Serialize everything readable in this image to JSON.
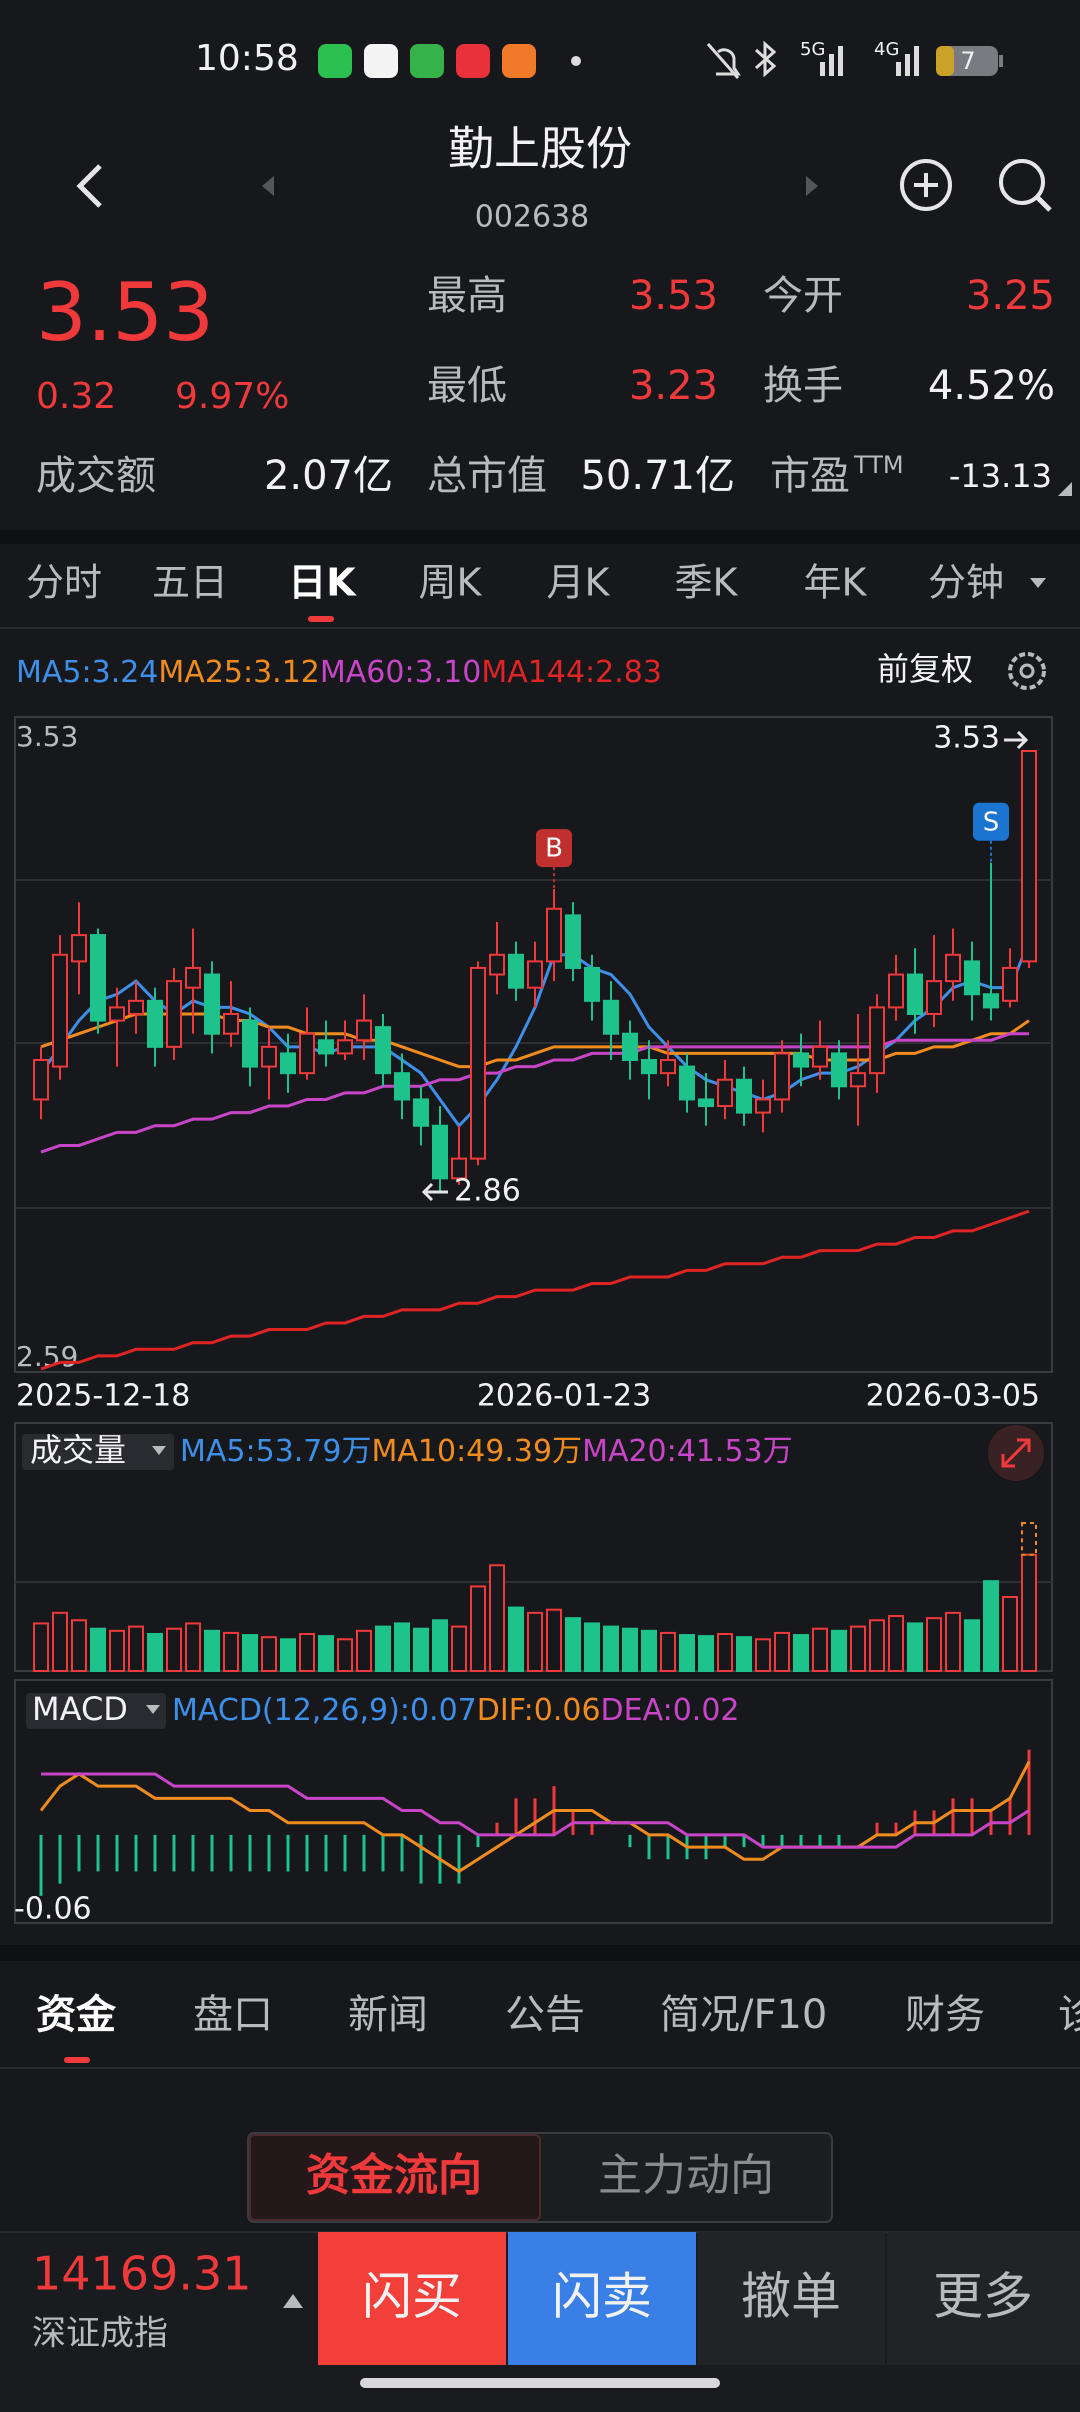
{
  "status": {
    "time": "10:58",
    "net1": "5G",
    "net2": "4G",
    "battery": "7"
  },
  "header": {
    "title": "勤上股份",
    "code": "002638"
  },
  "quote": {
    "price": "3.53",
    "change": "0.32",
    "change_pct": "9.97%",
    "stats": [
      {
        "label": "最高",
        "value": "3.53"
      },
      {
        "label": "今开",
        "value": "3.25"
      },
      {
        "label": "最低",
        "value": "3.23"
      },
      {
        "label": "换手",
        "value": "4.52%"
      },
      {
        "label": "成交额",
        "value": "2.07亿"
      },
      {
        "label": "总市值",
        "value": "50.71亿"
      },
      {
        "label": "市盈",
        "sup": "TTM",
        "value": "-13.13"
      }
    ]
  },
  "period_tabs": [
    "分时",
    "五日",
    "日K",
    "周K",
    "月K",
    "季K",
    "年K",
    "分钟"
  ],
  "adjust": "前复权",
  "chart_data": [
    {
      "type": "candlestick",
      "legend": [
        "MA5:3.24",
        "MA25:3.12",
        "MA60:3.10",
        "MA144:2.83"
      ],
      "marks": [
        "B",
        "S"
      ],
      "categories": [
        "2025-12-18",
        null,
        null,
        null,
        null,
        null,
        null,
        null,
        null,
        null,
        null,
        null,
        null,
        null,
        null,
        null,
        null,
        null,
        null,
        null,
        null,
        null,
        null,
        null,
        null,
        null,
        null,
        "2026-01-23",
        null,
        null,
        null,
        null,
        null,
        null,
        null,
        null,
        null,
        null,
        null,
        null,
        null,
        null,
        null,
        null,
        null,
        null,
        null,
        null,
        null,
        null,
        null,
        null,
        "2026-03-05"
      ],
      "open": [
        3.0,
        3.05,
        3.21,
        3.25,
        3.12,
        3.13,
        3.15,
        3.08,
        3.17,
        3.19,
        3.1,
        3.12,
        3.05,
        3.07,
        3.04,
        3.09,
        3.07,
        3.09,
        3.11,
        3.04,
        3.0,
        2.96,
        2.88,
        2.91,
        3.19,
        3.22,
        3.17,
        3.21,
        3.28,
        3.2,
        3.15,
        3.1,
        3.06,
        3.04,
        3.05,
        3.0,
        2.99,
        3.03,
        2.98,
        3.0,
        3.07,
        3.05,
        3.07,
        3.02,
        3.04,
        3.14,
        3.19,
        3.13,
        3.18,
        3.21,
        3.16,
        3.15,
        3.21
      ],
      "close": [
        3.06,
        3.22,
        3.25,
        3.12,
        3.14,
        3.15,
        3.08,
        3.18,
        3.2,
        3.1,
        3.13,
        3.05,
        3.08,
        3.04,
        3.1,
        3.07,
        3.09,
        3.12,
        3.04,
        3.0,
        2.96,
        2.88,
        2.91,
        3.2,
        3.22,
        3.17,
        3.21,
        3.29,
        3.2,
        3.15,
        3.1,
        3.06,
        3.04,
        3.06,
        3.0,
        2.99,
        3.03,
        2.98,
        3.0,
        3.07,
        3.05,
        3.08,
        3.02,
        3.04,
        3.14,
        3.19,
        3.13,
        3.18,
        3.22,
        3.16,
        3.14,
        3.2,
        3.53
      ],
      "high": [
        3.08,
        3.25,
        3.3,
        3.26,
        3.17,
        3.18,
        3.17,
        3.2,
        3.26,
        3.21,
        3.18,
        3.14,
        3.11,
        3.1,
        3.14,
        3.12,
        3.12,
        3.16,
        3.13,
        3.07,
        3.02,
        2.99,
        2.96,
        3.21,
        3.27,
        3.24,
        3.24,
        3.32,
        3.3,
        3.22,
        3.18,
        3.12,
        3.09,
        3.09,
        3.07,
        3.04,
        3.06,
        3.05,
        3.03,
        3.09,
        3.1,
        3.12,
        3.09,
        3.13,
        3.16,
        3.22,
        3.23,
        3.25,
        3.26,
        3.24,
        3.36,
        3.23,
        3.53
      ],
      "low": [
        2.97,
        3.03,
        3.16,
        3.1,
        3.05,
        3.1,
        3.05,
        3.06,
        3.1,
        3.07,
        3.08,
        3.02,
        3.0,
        3.01,
        3.03,
        3.05,
        3.06,
        3.06,
        3.02,
        2.97,
        2.93,
        2.86,
        2.87,
        2.9,
        3.16,
        3.15,
        3.14,
        3.18,
        3.18,
        3.12,
        3.06,
        3.03,
        3.0,
        3.02,
        2.98,
        2.96,
        2.97,
        2.96,
        2.95,
        2.98,
        3.02,
        3.03,
        3.0,
        2.96,
        3.01,
        3.12,
        3.1,
        3.11,
        3.15,
        3.12,
        3.12,
        3.14,
        3.2
      ],
      "series": [
        {
          "color": "#3d8fe8",
          "values": [
            3.04,
            3.08,
            3.12,
            3.15,
            3.16,
            3.18,
            3.15,
            3.13,
            3.15,
            3.14,
            3.14,
            3.13,
            3.11,
            3.08,
            3.08,
            3.07,
            3.08,
            3.08,
            3.08,
            3.06,
            3.04,
            3.0,
            2.96,
            2.99,
            3.03,
            3.08,
            3.14,
            3.22,
            3.22,
            3.2,
            3.19,
            3.16,
            3.11,
            3.08,
            3.05,
            3.03,
            3.02,
            3.01,
            3.0,
            3.01,
            3.03,
            3.04,
            3.04,
            3.05,
            3.07,
            3.09,
            3.12,
            3.14,
            3.17,
            3.18,
            3.17,
            3.17,
            3.24
          ]
        },
        {
          "color": "#f08c1e",
          "values": [
            3.08,
            3.09,
            3.1,
            3.11,
            3.12,
            3.13,
            3.13,
            3.13,
            3.13,
            3.13,
            3.12,
            3.12,
            3.11,
            3.11,
            3.1,
            3.1,
            3.1,
            3.09,
            3.09,
            3.08,
            3.07,
            3.06,
            3.05,
            3.05,
            3.06,
            3.06,
            3.07,
            3.08,
            3.08,
            3.08,
            3.08,
            3.08,
            3.08,
            3.07,
            3.07,
            3.07,
            3.07,
            3.07,
            3.07,
            3.07,
            3.07,
            3.06,
            3.06,
            3.06,
            3.06,
            3.07,
            3.07,
            3.08,
            3.08,
            3.09,
            3.1,
            3.1,
            3.12
          ]
        },
        {
          "color": "#c845c8",
          "values": [
            2.92,
            2.93,
            2.93,
            2.94,
            2.95,
            2.95,
            2.96,
            2.96,
            2.97,
            2.97,
            2.98,
            2.98,
            2.99,
            2.99,
            3.0,
            3.0,
            3.01,
            3.01,
            3.02,
            3.02,
            3.02,
            3.03,
            3.03,
            3.04,
            3.04,
            3.05,
            3.05,
            3.06,
            3.06,
            3.07,
            3.07,
            3.07,
            3.08,
            3.08,
            3.08,
            3.08,
            3.08,
            3.08,
            3.08,
            3.08,
            3.08,
            3.08,
            3.08,
            3.08,
            3.08,
            3.09,
            3.09,
            3.09,
            3.09,
            3.09,
            3.09,
            3.1,
            3.1
          ]
        },
        {
          "color": "#e02424",
          "values": [
            2.59,
            2.6,
            2.6,
            2.61,
            2.61,
            2.62,
            2.62,
            2.62,
            2.63,
            2.63,
            2.64,
            2.64,
            2.65,
            2.65,
            2.65,
            2.66,
            2.66,
            2.67,
            2.67,
            2.68,
            2.68,
            2.68,
            2.69,
            2.69,
            2.7,
            2.7,
            2.71,
            2.71,
            2.71,
            2.72,
            2.72,
            2.73,
            2.73,
            2.73,
            2.74,
            2.74,
            2.75,
            2.75,
            2.75,
            2.76,
            2.76,
            2.77,
            2.77,
            2.77,
            2.78,
            2.78,
            2.79,
            2.79,
            2.8,
            2.8,
            2.81,
            2.82,
            2.83
          ]
        }
      ],
      "up_color": "#f0393b",
      "down_color": "#1ec28b",
      "ylim": [
        2.59,
        3.53
      ]
    },
    {
      "type": "bar",
      "title": "成交量",
      "legend": [
        {
          "text": "MA5:53.79万",
          "color": "#3d8fe8"
        },
        {
          "text": "MA10:49.39万",
          "color": "#f08c1e"
        },
        {
          "text": "MA20:41.53万",
          "color": "#c845c8"
        }
      ],
      "values": [
        45,
        55,
        48,
        40,
        38,
        42,
        35,
        40,
        45,
        38,
        36,
        34,
        32,
        30,
        35,
        33,
        30,
        38,
        42,
        45,
        40,
        48,
        42,
        80,
        100,
        60,
        55,
        58,
        50,
        45,
        42,
        40,
        38,
        36,
        34,
        33,
        35,
        32,
        30,
        36,
        34,
        40,
        38,
        42,
        48,
        52,
        45,
        50,
        55,
        48,
        85,
        70,
        110
      ],
      "ylim": [
        0,
        140
      ]
    },
    {
      "type": "bar",
      "title": "MACD",
      "legend": [
        {
          "text": "MACD(12,26,9):0.07",
          "color": "#3d8fe8"
        },
        {
          "text": "DIF:0.06",
          "color": "#f08c1e"
        },
        {
          "text": "DEA:0.02",
          "color": "#c845c8"
        }
      ],
      "values": [
        -0.05,
        -0.04,
        -0.03,
        -0.03,
        -0.03,
        -0.03,
        -0.03,
        -0.03,
        -0.03,
        -0.03,
        -0.03,
        -0.03,
        -0.03,
        -0.03,
        -0.03,
        -0.03,
        -0.03,
        -0.03,
        -0.03,
        -0.03,
        -0.04,
        -0.04,
        -0.04,
        -0.01,
        0.01,
        0.03,
        0.03,
        0.04,
        0.02,
        0.01,
        0.0,
        -0.01,
        -0.02,
        -0.02,
        -0.02,
        -0.02,
        -0.01,
        -0.01,
        -0.01,
        -0.01,
        -0.01,
        -0.01,
        -0.01,
        0.0,
        0.01,
        0.01,
        0.02,
        0.02,
        0.03,
        0.03,
        0.02,
        0.03,
        0.07
      ],
      "series": [
        {
          "color": "#f08c1e",
          "values": [
            0.02,
            0.04,
            0.05,
            0.04,
            0.04,
            0.04,
            0.03,
            0.03,
            0.03,
            0.03,
            0.03,
            0.02,
            0.02,
            0.01,
            0.01,
            0.01,
            0.01,
            0.01,
            0.0,
            0.0,
            -0.01,
            -0.02,
            -0.03,
            -0.02,
            -0.01,
            0.0,
            0.01,
            0.02,
            0.02,
            0.02,
            0.01,
            0.01,
            0.0,
            0.0,
            -0.01,
            -0.01,
            -0.01,
            -0.02,
            -0.02,
            -0.01,
            -0.01,
            -0.01,
            -0.01,
            -0.01,
            0.0,
            0.0,
            0.01,
            0.01,
            0.02,
            0.02,
            0.02,
            0.03,
            0.06
          ]
        },
        {
          "color": "#c845c8",
          "values": [
            0.05,
            0.05,
            0.05,
            0.05,
            0.05,
            0.05,
            0.05,
            0.04,
            0.04,
            0.04,
            0.04,
            0.04,
            0.04,
            0.04,
            0.03,
            0.03,
            0.03,
            0.03,
            0.03,
            0.02,
            0.02,
            0.01,
            0.01,
            0.0,
            0.0,
            0.0,
            0.0,
            0.0,
            0.01,
            0.01,
            0.01,
            0.01,
            0.01,
            0.01,
            0.0,
            0.0,
            0.0,
            0.0,
            -0.01,
            -0.01,
            -0.01,
            -0.01,
            -0.01,
            -0.01,
            -0.01,
            -0.01,
            0.0,
            0.0,
            0.0,
            0.0,
            0.01,
            0.01,
            0.02
          ]
        }
      ],
      "ylim": [
        -0.06,
        0.1
      ]
    }
  ],
  "info_tabs": [
    "资金",
    "盘口",
    "新闻",
    "公告",
    "简况/F10",
    "财务",
    "诊"
  ],
  "sub_tabs": [
    "资金流向",
    "主力动向"
  ],
  "footer": {
    "index_value": "14169.31",
    "index_name": "深证成指",
    "buttons": [
      "闪买",
      "闪卖",
      "撤单",
      "更多"
    ]
  }
}
